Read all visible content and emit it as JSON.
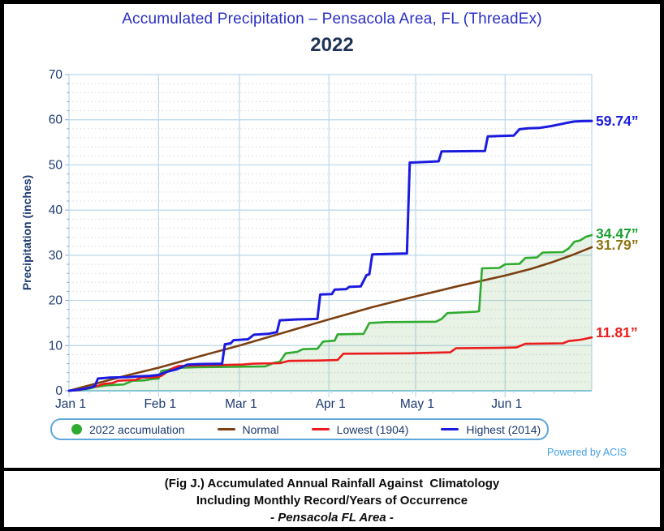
{
  "window": {
    "title_line1": "Accumulated Precipitation – Pensacola Area, FL (ThreadEx)",
    "title_line2": "2022"
  },
  "footer": {
    "powered": "Powered by ACIS",
    "caption_line1": "(Fig J.) Accumulated Annual Rainfall Against  Climatology",
    "caption_line2": "Including Monthly Record/Years of Occurrence",
    "caption_line3": "- Pensacola FL Area -"
  },
  "colors": {
    "title_blue": "#2b2fc4",
    "subtitle_navy": "#1f3355",
    "axis_text": "#1d3a70",
    "grid_major": "#b9d7ec",
    "grid_minor": "#c5d0e0",
    "baseline": "#82c7dd",
    "tick_mark": "#9aa7c0",
    "green": "#2fab2f",
    "green_fill": "rgba(110,175,95,0.16)",
    "brown": "#7c4012",
    "red": "#ea1c1c",
    "blue": "#1b1be0",
    "green_label": "#1b9e32",
    "olive_label": "#8d7511",
    "legend_border": "#5fa8dc",
    "powered_blue": "#45a1e6"
  },
  "chart_data": {
    "type": "line",
    "title": "Accumulated Precipitation – Pensacola Area, FL (ThreadEx)",
    "subtitle": "2022",
    "ylabel": "Precipitation (inches)",
    "ylim": [
      0,
      70
    ],
    "y_ticks": [
      0,
      10,
      20,
      30,
      40,
      50,
      60,
      70
    ],
    "y_minor_step": 2,
    "x_unit": "day_of_year_2022",
    "xlim": [
      0,
      181
    ],
    "x_ticks": [
      {
        "day": 0,
        "label": "Jan 1"
      },
      {
        "day": 31,
        "label": "Feb 1"
      },
      {
        "day": 59,
        "label": "Mar 1"
      },
      {
        "day": 90,
        "label": "Apr 1"
      },
      {
        "day": 120,
        "label": "May 1"
      },
      {
        "day": 151,
        "label": "Jun 1"
      }
    ],
    "grid": true,
    "legend_position": "bottom",
    "legend": {
      "items": [
        {
          "label": "2022 accumulation",
          "swatch": "dot",
          "color": "#2fab2f"
        },
        {
          "label": "Normal",
          "swatch": "line",
          "color": "#7c4012"
        },
        {
          "label": "Lowest (1904)",
          "swatch": "line",
          "color": "#ea1c1c"
        },
        {
          "label": "Highest (2014)",
          "swatch": "line",
          "color": "#1b1be0"
        }
      ]
    },
    "series": [
      {
        "name": "Normal",
        "slug": "normal",
        "color": "#7c4012",
        "width": 2.6,
        "end_label": "31.79”",
        "end_value": 31.79,
        "label_color": "#8d7511",
        "label_dy": -3,
        "points": [
          [
            0,
            0
          ],
          [
            10,
            1.7
          ],
          [
            20,
            3.4
          ],
          [
            31,
            5.1
          ],
          [
            45,
            7.6
          ],
          [
            59,
            10.0
          ],
          [
            75,
            13.0
          ],
          [
            90,
            15.8
          ],
          [
            105,
            18.5
          ],
          [
            120,
            20.9
          ],
          [
            135,
            23.2
          ],
          [
            151,
            25.5
          ],
          [
            160,
            27.0
          ],
          [
            167,
            28.4
          ],
          [
            174,
            30.0
          ],
          [
            181,
            31.79
          ]
        ]
      },
      {
        "name": "2022 accumulation",
        "slug": "accum-2022",
        "color": "#2fab2f",
        "width": 2.6,
        "fill": "rgba(110,175,95,0.16)",
        "end_label": "34.47”",
        "end_value": 34.47,
        "label_color": "#1b9e32",
        "label_dy": -2,
        "points": [
          [
            0,
            0
          ],
          [
            4,
            0.2
          ],
          [
            7,
            0.5
          ],
          [
            9,
            0.8
          ],
          [
            13,
            1.2
          ],
          [
            19,
            1.4
          ],
          [
            22,
            2.2
          ],
          [
            26,
            2.3
          ],
          [
            29,
            2.6
          ],
          [
            31,
            2.7
          ],
          [
            32,
            4.4
          ],
          [
            34,
            4.6
          ],
          [
            36,
            4.9
          ],
          [
            39,
            5.1
          ],
          [
            44,
            5.2
          ],
          [
            57,
            5.3
          ],
          [
            68,
            5.4
          ],
          [
            71,
            6.2
          ],
          [
            73,
            6.4
          ],
          [
            75,
            8.3
          ],
          [
            79,
            8.6
          ],
          [
            81,
            9.2
          ],
          [
            86,
            9.3
          ],
          [
            88,
            10.9
          ],
          [
            92,
            11.1
          ],
          [
            93,
            12.5
          ],
          [
            102,
            12.6
          ],
          [
            104,
            15.0
          ],
          [
            110,
            15.2
          ],
          [
            127,
            15.3
          ],
          [
            129,
            15.9
          ],
          [
            131,
            17.2
          ],
          [
            141,
            17.5
          ],
          [
            142,
            17.6
          ],
          [
            143,
            27.1
          ],
          [
            149,
            27.2
          ],
          [
            151,
            28.0
          ],
          [
            156,
            28.1
          ],
          [
            158,
            29.4
          ],
          [
            162,
            29.5
          ],
          [
            164,
            30.6
          ],
          [
            171,
            30.7
          ],
          [
            173,
            31.5
          ],
          [
            175,
            33.0
          ],
          [
            177,
            33.3
          ],
          [
            179,
            34.1
          ],
          [
            181,
            34.47
          ]
        ]
      },
      {
        "name": "Lowest (1904)",
        "slug": "lowest-1904",
        "color": "#ea1c1c",
        "width": 2.6,
        "end_label": "11.81”",
        "end_value": 11.81,
        "label_color": "#ea1c1c",
        "label_dy": -6,
        "points": [
          [
            0,
            0
          ],
          [
            4,
            0.2
          ],
          [
            7,
            0.7
          ],
          [
            10,
            1.1
          ],
          [
            12,
            1.5
          ],
          [
            15,
            1.7
          ],
          [
            17,
            2.2
          ],
          [
            23,
            2.4
          ],
          [
            25,
            2.9
          ],
          [
            30,
            3.0
          ],
          [
            32,
            3.3
          ],
          [
            34,
            4.2
          ],
          [
            36,
            5.0
          ],
          [
            38,
            5.5
          ],
          [
            44,
            5.6
          ],
          [
            60,
            5.8
          ],
          [
            64,
            6.0
          ],
          [
            73,
            6.1
          ],
          [
            76,
            6.6
          ],
          [
            87,
            6.7
          ],
          [
            93,
            6.8
          ],
          [
            95,
            8.2
          ],
          [
            118,
            8.3
          ],
          [
            132,
            8.5
          ],
          [
            134,
            9.4
          ],
          [
            149,
            9.5
          ],
          [
            155,
            9.6
          ],
          [
            158,
            10.4
          ],
          [
            171,
            10.5
          ],
          [
            173,
            11.0
          ],
          [
            176,
            11.2
          ],
          [
            178,
            11.4
          ],
          [
            181,
            11.81
          ]
        ]
      },
      {
        "name": "Highest (2014)",
        "slug": "highest-2014",
        "color": "#1b1be0",
        "width": 3,
        "end_label": "59.74”",
        "end_value": 59.74,
        "label_color": "#1b1be0",
        "label_dy": 0,
        "points": [
          [
            0,
            0
          ],
          [
            3,
            0.2
          ],
          [
            6,
            0.5
          ],
          [
            8,
            0.8
          ],
          [
            9,
            1.1
          ],
          [
            10,
            2.7
          ],
          [
            14,
            2.9
          ],
          [
            20,
            3.0
          ],
          [
            24,
            3.2
          ],
          [
            28,
            3.3
          ],
          [
            31,
            3.5
          ],
          [
            33,
            4.0
          ],
          [
            35,
            4.4
          ],
          [
            37,
            4.7
          ],
          [
            39,
            5.2
          ],
          [
            41,
            5.8
          ],
          [
            45,
            5.9
          ],
          [
            53,
            6.0
          ],
          [
            54,
            10.3
          ],
          [
            56,
            10.5
          ],
          [
            57,
            11.2
          ],
          [
            62,
            11.4
          ],
          [
            64,
            12.4
          ],
          [
            69,
            12.6
          ],
          [
            72,
            13.0
          ],
          [
            73,
            15.6
          ],
          [
            79,
            15.8
          ],
          [
            86,
            15.9
          ],
          [
            87,
            21.3
          ],
          [
            91,
            21.4
          ],
          [
            92,
            22.4
          ],
          [
            96,
            22.5
          ],
          [
            97,
            23.0
          ],
          [
            101,
            23.1
          ],
          [
            103,
            25.6
          ],
          [
            104,
            25.8
          ],
          [
            105,
            30.2
          ],
          [
            117,
            30.4
          ],
          [
            118,
            50.5
          ],
          [
            125,
            50.7
          ],
          [
            128,
            50.8
          ],
          [
            129,
            53.0
          ],
          [
            144,
            53.1
          ],
          [
            145,
            56.3
          ],
          [
            149,
            56.4
          ],
          [
            154,
            56.5
          ],
          [
            156,
            57.9
          ],
          [
            159,
            58.1
          ],
          [
            163,
            58.2
          ],
          [
            165,
            58.4
          ],
          [
            167,
            58.6
          ],
          [
            170,
            59.0
          ],
          [
            173,
            59.4
          ],
          [
            175,
            59.6
          ],
          [
            178,
            59.7
          ],
          [
            181,
            59.74
          ]
        ]
      }
    ]
  }
}
